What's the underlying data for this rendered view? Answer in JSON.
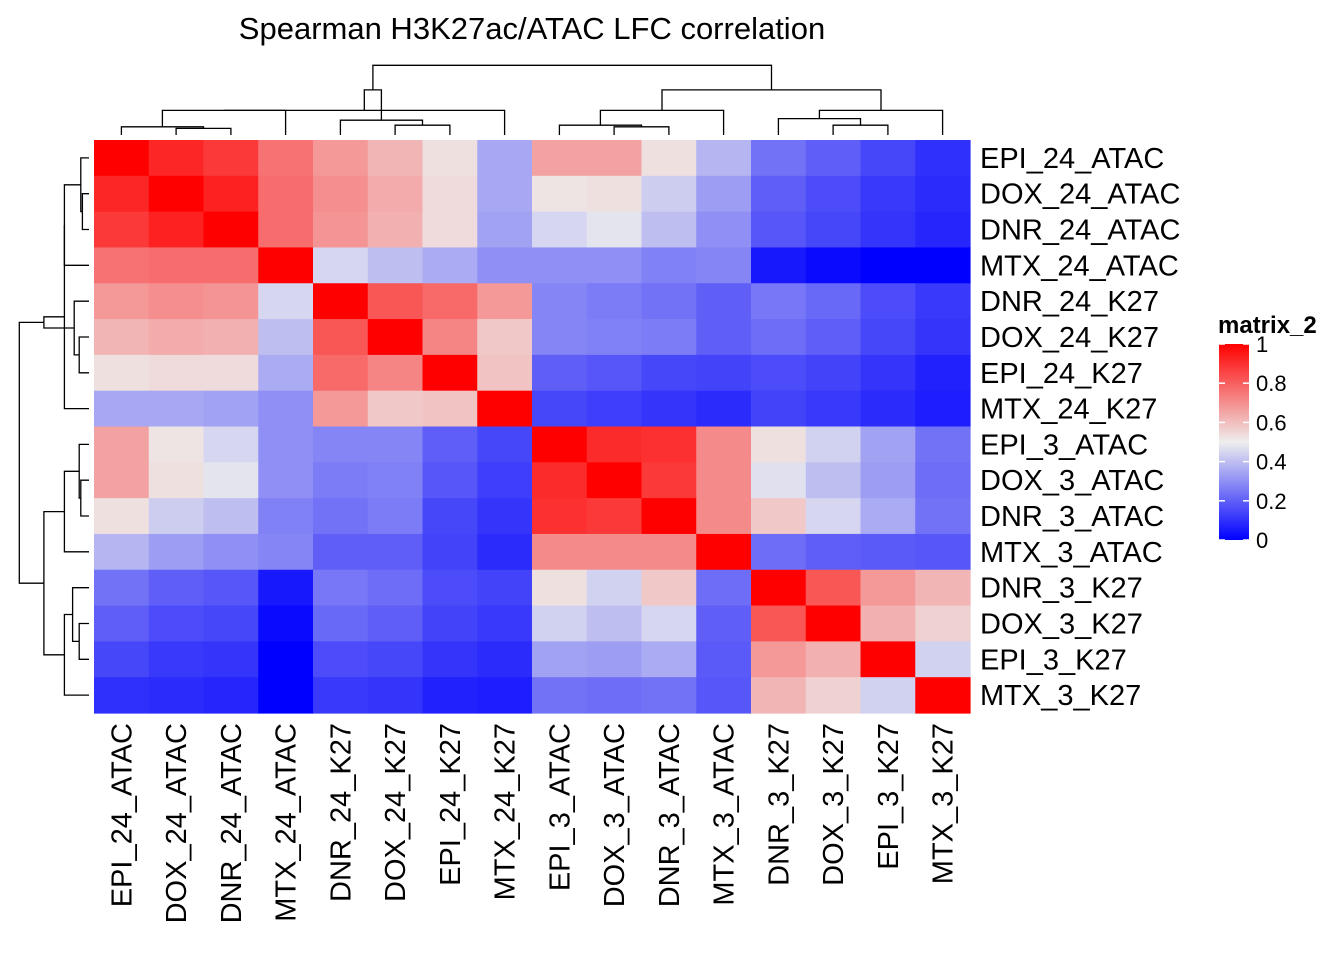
{
  "chart_data": {
    "type": "heatmap",
    "title": "Spearman H3K27ac/ATAC LFC correlation",
    "rows": [
      "EPI_24_ATAC",
      "DOX_24_ATAC",
      "DNR_24_ATAC",
      "MTX_24_ATAC",
      "DNR_24_K27",
      "DOX_24_K27",
      "EPI_24_K27",
      "MTX_24_K27",
      "EPI_3_ATAC",
      "DOX_3_ATAC",
      "DNR_3_ATAC",
      "MTX_3_ATAC",
      "DNR_3_K27",
      "DOX_3_K27",
      "EPI_3_K27",
      "MTX_3_K27"
    ],
    "columns": [
      "EPI_24_ATAC",
      "DOX_24_ATAC",
      "DNR_24_ATAC",
      "MTX_24_ATAC",
      "DNR_24_K27",
      "DOX_24_K27",
      "EPI_24_K27",
      "MTX_24_K27",
      "EPI_3_ATAC",
      "DOX_3_ATAC",
      "DNR_3_ATAC",
      "MTX_3_ATAC",
      "DNR_3_K27",
      "DOX_3_K27",
      "EPI_3_K27",
      "MTX_3_K27"
    ],
    "values": [
      [
        1.0,
        0.92,
        0.88,
        0.76,
        0.68,
        0.62,
        0.53,
        0.35,
        0.66,
        0.66,
        0.53,
        0.38,
        0.24,
        0.2,
        0.15,
        0.1
      ],
      [
        0.92,
        1.0,
        0.93,
        0.77,
        0.7,
        0.64,
        0.54,
        0.35,
        0.52,
        0.53,
        0.43,
        0.33,
        0.2,
        0.16,
        0.12,
        0.09
      ],
      [
        0.88,
        0.93,
        1.0,
        0.77,
        0.69,
        0.63,
        0.54,
        0.34,
        0.45,
        0.48,
        0.4,
        0.3,
        0.18,
        0.15,
        0.11,
        0.08
      ],
      [
        0.76,
        0.77,
        0.77,
        1.0,
        0.45,
        0.4,
        0.36,
        0.3,
        0.3,
        0.3,
        0.27,
        0.28,
        0.05,
        0.02,
        0.0,
        0.0
      ],
      [
        0.68,
        0.7,
        0.69,
        0.45,
        1.0,
        0.82,
        0.78,
        0.68,
        0.28,
        0.26,
        0.24,
        0.2,
        0.25,
        0.22,
        0.16,
        0.12
      ],
      [
        0.62,
        0.64,
        0.63,
        0.4,
        0.82,
        1.0,
        0.72,
        0.58,
        0.28,
        0.27,
        0.26,
        0.2,
        0.23,
        0.2,
        0.15,
        0.11
      ],
      [
        0.53,
        0.54,
        0.54,
        0.36,
        0.78,
        0.72,
        1.0,
        0.59,
        0.2,
        0.18,
        0.15,
        0.14,
        0.16,
        0.14,
        0.11,
        0.07
      ],
      [
        0.35,
        0.35,
        0.34,
        0.3,
        0.68,
        0.58,
        0.59,
        1.0,
        0.15,
        0.13,
        0.11,
        0.09,
        0.14,
        0.12,
        0.09,
        0.06
      ],
      [
        0.66,
        0.52,
        0.45,
        0.3,
        0.28,
        0.28,
        0.2,
        0.15,
        1.0,
        0.91,
        0.9,
        0.71,
        0.53,
        0.44,
        0.34,
        0.24
      ],
      [
        0.66,
        0.53,
        0.48,
        0.3,
        0.26,
        0.27,
        0.18,
        0.13,
        0.91,
        1.0,
        0.88,
        0.71,
        0.47,
        0.4,
        0.33,
        0.23
      ],
      [
        0.53,
        0.43,
        0.4,
        0.27,
        0.24,
        0.26,
        0.15,
        0.11,
        0.9,
        0.88,
        1.0,
        0.71,
        0.58,
        0.45,
        0.36,
        0.24
      ],
      [
        0.38,
        0.33,
        0.3,
        0.28,
        0.2,
        0.2,
        0.14,
        0.09,
        0.71,
        0.71,
        0.71,
        1.0,
        0.23,
        0.2,
        0.19,
        0.18
      ],
      [
        0.24,
        0.2,
        0.18,
        0.05,
        0.25,
        0.23,
        0.16,
        0.14,
        0.53,
        0.44,
        0.58,
        0.23,
        1.0,
        0.82,
        0.68,
        0.62
      ],
      [
        0.2,
        0.16,
        0.15,
        0.02,
        0.22,
        0.2,
        0.14,
        0.12,
        0.44,
        0.4,
        0.45,
        0.2,
        0.82,
        1.0,
        0.63,
        0.56
      ],
      [
        0.15,
        0.12,
        0.11,
        0.0,
        0.16,
        0.15,
        0.11,
        0.09,
        0.34,
        0.33,
        0.36,
        0.19,
        0.68,
        0.63,
        1.0,
        0.44
      ],
      [
        0.1,
        0.09,
        0.08,
        0.0,
        0.12,
        0.11,
        0.07,
        0.06,
        0.24,
        0.23,
        0.24,
        0.18,
        0.62,
        0.56,
        0.44,
        1.0
      ]
    ],
    "color_scale": {
      "low": "#0000FF",
      "mid": "#EEEEEE",
      "high": "#FF0000",
      "mid_value": 0.5,
      "range": [
        0,
        1
      ]
    },
    "legend": {
      "title": "matrix_2",
      "ticks": [
        "1",
        "0.8",
        "0.6",
        "0.4",
        "0.2",
        "0"
      ],
      "tick_values": [
        1,
        0.8,
        0.6,
        0.4,
        0.2,
        0
      ],
      "position": "right"
    },
    "dendrogram": {
      "order": [
        "EPI_24_ATAC",
        "DOX_24_ATAC",
        "DNR_24_ATAC",
        "MTX_24_ATAC",
        "DNR_24_K27",
        "DOX_24_K27",
        "EPI_24_K27",
        "MTX_24_K27",
        "EPI_3_ATAC",
        "DOX_3_ATAC",
        "DNR_3_ATAC",
        "MTX_3_ATAC",
        "DNR_3_K27",
        "DOX_3_K27",
        "EPI_3_K27",
        "MTX_3_K27"
      ],
      "merges": [
        [
          1,
          2,
          0.08
        ],
        [
          0,
          -1,
          0.1
        ],
        [
          5,
          6,
          0.12
        ],
        [
          9,
          10,
          0.1
        ],
        [
          8,
          -4,
          0.12
        ],
        [
          13,
          14,
          0.12
        ],
        [
          4,
          -3,
          0.18
        ],
        [
          -2,
          3,
          0.3
        ],
        [
          12,
          -6,
          0.2
        ],
        [
          -8,
          7,
          0.3
        ],
        [
          -5,
          11,
          0.3
        ],
        [
          -9,
          15,
          0.3
        ],
        [
          -10,
          -7,
          0.55
        ],
        [
          -11,
          -12,
          0.55
        ],
        [
          -13,
          -14,
          0.85
        ]
      ]
    }
  }
}
